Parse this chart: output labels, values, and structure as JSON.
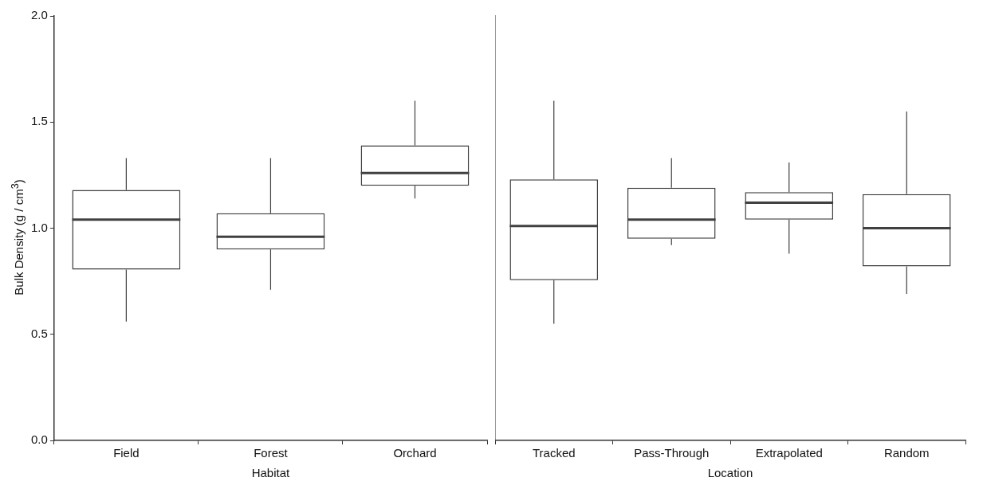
{
  "chart_data": [
    {
      "type": "box",
      "xlabel": "Habitat",
      "ylabel": "Bulk Density (g / cm$^{3}$)",
      "categories": [
        "Field",
        "Forest",
        "Orchard"
      ],
      "ylim": [
        0,
        2
      ],
      "yticks": [
        {
          "value": 0,
          "label": "0.0"
        },
        0.5,
        {
          "value": 1,
          "label": "1.0"
        },
        1.5,
        {
          "value": 2,
          "label": "2.0"
        }
      ],
      "series": [
        {
          "color": "#404040",
          "boxes": [
            {
              "low": 0.56,
              "q1": 0.805,
              "median": 1.04,
              "q3": 1.18,
              "high": 1.33
            },
            {
              "low": 0.71,
              "q1": 0.9,
              "median": 0.96,
              "q3": 1.07,
              "high": 1.33
            },
            {
              "low": 1.14,
              "q1": 1.2,
              "median": 1.26,
              "q3": 1.39,
              "high": 1.6
            }
          ]
        }
      ]
    },
    {
      "type": "box",
      "xlabel": "Location",
      "categories": [
        "Tracked",
        "Pass-Through",
        "Extrapolated",
        "Random"
      ],
      "ylim": [
        0,
        2
      ],
      "tick_labels": "x",
      "series": [
        {
          "color": "#404040",
          "boxes": [
            {
              "low": 0.55,
              "q1": 0.755,
              "median": 1.01,
              "q3": 1.23,
              "high": 1.6
            },
            {
              "low": 0.92,
              "q1": 0.95,
              "median": 1.04,
              "q3": 1.19,
              "high": 1.33
            },
            {
              "low": 0.88,
              "q1": 1.04,
              "median": 1.12,
              "q3": 1.17,
              "high": 1.31
            },
            {
              "low": 0.69,
              "q1": 0.82,
              "median": 1.0,
              "q3": 1.16,
              "high": 1.55
            }
          ]
        }
      ]
    }
  ]
}
